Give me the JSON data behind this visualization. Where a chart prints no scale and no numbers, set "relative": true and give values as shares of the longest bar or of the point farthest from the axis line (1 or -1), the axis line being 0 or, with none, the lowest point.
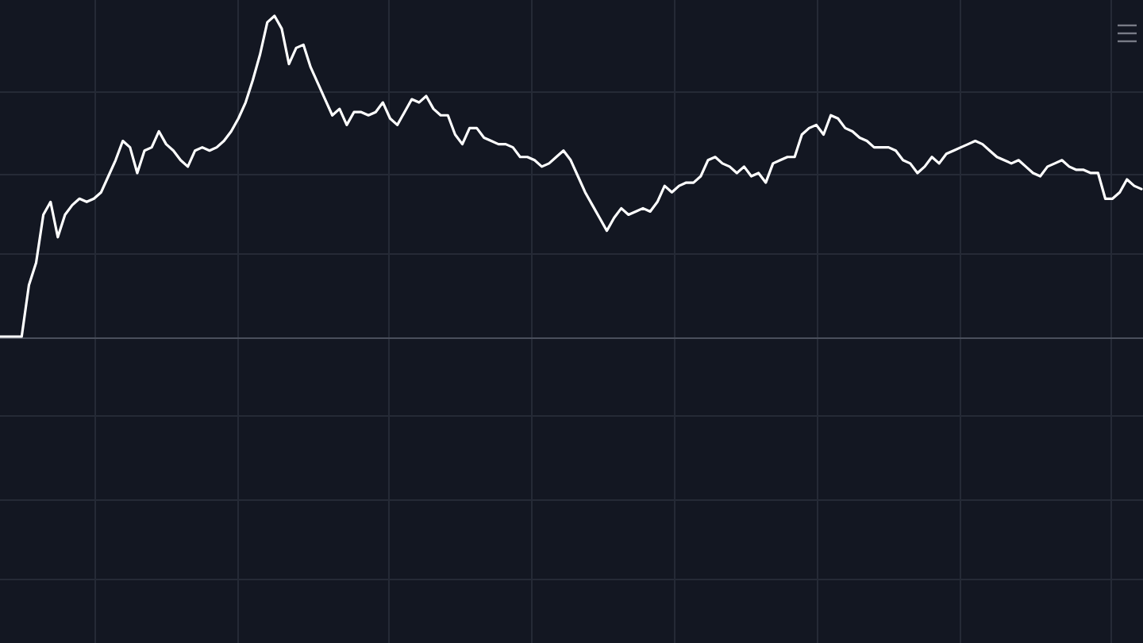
{
  "chart_data": {
    "type": "line",
    "relative": true,
    "grid": true,
    "color": "#ffffff",
    "categories": [
      null,
      null,
      null,
      null,
      null,
      null,
      null,
      null,
      null,
      null,
      null,
      null,
      null,
      null,
      null,
      null,
      null,
      null,
      null,
      null,
      null,
      null,
      null,
      null,
      null,
      null,
      null,
      null,
      null,
      null,
      null,
      null,
      null,
      null,
      null,
      null,
      null,
      null,
      null,
      null,
      null,
      null,
      null,
      null,
      null,
      null,
      null,
      null,
      null,
      null,
      null,
      null,
      null,
      null,
      null,
      null,
      null,
      null,
      null,
      null,
      null,
      null,
      null,
      null,
      null,
      null,
      null,
      null,
      null,
      null,
      null,
      null,
      null,
      null,
      null,
      null,
      null,
      null,
      null,
      null,
      null,
      null,
      null,
      null,
      null,
      null,
      null,
      null,
      null,
      null,
      null,
      null,
      null,
      null,
      null,
      null,
      null,
      null,
      null,
      null,
      null,
      null,
      null,
      null,
      null,
      null,
      null,
      null,
      null,
      null,
      null,
      null,
      null,
      null,
      null,
      null,
      null,
      null,
      null,
      null,
      null,
      null,
      null,
      null,
      null,
      null,
      null,
      null,
      null,
      null,
      null,
      null,
      null,
      null,
      null,
      null,
      null,
      null,
      null,
      null,
      null,
      null,
      null,
      null,
      null,
      null,
      null,
      null,
      null,
      null,
      null,
      null,
      null,
      null,
      null,
      null,
      null,
      null,
      null
    ],
    "values": [
      0,
      0,
      0,
      0,
      0.16,
      0.23,
      0.38,
      0.42,
      0.31,
      0.38,
      0.41,
      0.43,
      0.42,
      0.43,
      0.45,
      0.5,
      0.55,
      0.61,
      0.59,
      0.51,
      0.58,
      0.59,
      0.64,
      0.6,
      0.58,
      0.55,
      0.53,
      0.58,
      0.59,
      0.58,
      0.59,
      0.61,
      0.64,
      0.68,
      0.73,
      0.8,
      0.88,
      0.98,
      1,
      0.96,
      0.85,
      0.9,
      0.91,
      0.84,
      0.79,
      0.74,
      0.69,
      0.71,
      0.66,
      0.7,
      0.7,
      0.69,
      0.7,
      0.73,
      0.68,
      0.66,
      0.7,
      0.74,
      0.73,
      0.75,
      0.71,
      0.69,
      0.69,
      0.63,
      0.6,
      0.65,
      0.65,
      0.62,
      0.61,
      0.6,
      0.6,
      0.59,
      0.56,
      0.56,
      0.55,
      0.53,
      0.54,
      0.56,
      0.58,
      0.55,
      0.5,
      0.45,
      0.41,
      0.37,
      0.33,
      0.37,
      0.4,
      0.38,
      0.39,
      0.4,
      0.39,
      0.42,
      0.47,
      0.45,
      0.47,
      0.48,
      0.48,
      0.5,
      0.55,
      0.56,
      0.54,
      0.53,
      0.51,
      0.53,
      0.5,
      0.51,
      0.48,
      0.54,
      0.55,
      0.56,
      0.56,
      0.63,
      0.65,
      0.66,
      0.63,
      0.69,
      0.68,
      0.65,
      0.64,
      0.62,
      0.61,
      0.59,
      0.59,
      0.59,
      0.58,
      0.55,
      0.54,
      0.51,
      0.53,
      0.56,
      0.54,
      0.57,
      0.58,
      0.59,
      0.6,
      0.61,
      0.6,
      0.58,
      0.56,
      0.55,
      0.54,
      0.55,
      0.53,
      0.51,
      0.5,
      0.53,
      0.54,
      0.55,
      0.53,
      0.52,
      0.52,
      0.51,
      0.51,
      0.43,
      0.43,
      0.45,
      0.49,
      0.47,
      0.46
    ]
  }
}
